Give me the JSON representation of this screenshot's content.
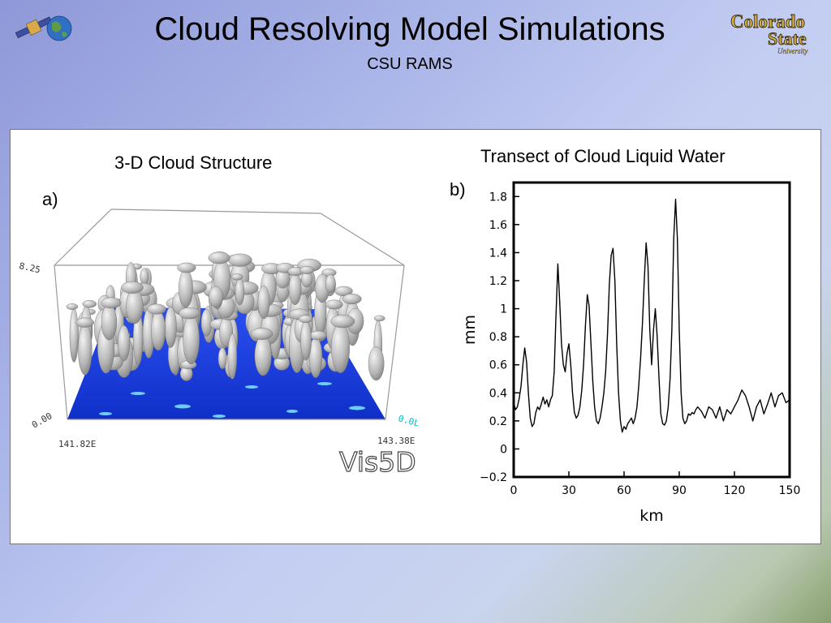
{
  "header": {
    "title": "Cloud Resolving Model Simulations",
    "subtitle": "CSU RAMS",
    "logo_left": "satellite-globe-logo",
    "logo_right_line1": "Colorado",
    "logo_right_line2": "State",
    "logo_right_line3": "University"
  },
  "panel_a": {
    "title": "3-D Cloud Structure",
    "label": "a)",
    "top_value": "8.25",
    "bottom_value": "0.00",
    "left_lon": "141.82E",
    "right_lon": "143.38E",
    "right_value": "0.0L",
    "software": "Vis5D",
    "ground_color": "#1a3cdc",
    "cloud_color": "#b8b8b8"
  },
  "panel_b": {
    "title": "Transect of Cloud Liquid Water",
    "label": "b)"
  },
  "chart_data": {
    "type": "line",
    "title": "Transect of Cloud Liquid Water",
    "xlabel": "km",
    "ylabel": "mm",
    "xlim": [
      0,
      150
    ],
    "ylim": [
      -0.2,
      1.9
    ],
    "xticks": [
      "0",
      "30",
      "60",
      "90",
      "120",
      "150"
    ],
    "yticks": [
      "-0.2",
      "0",
      "0.2",
      "0.4",
      "0.6",
      "0.8",
      "1",
      "1.2",
      "1.4",
      "1.6",
      "1.8"
    ],
    "grid": false,
    "series": [
      {
        "x": [
          0,
          1,
          2,
          3,
          4,
          5,
          6,
          7,
          8,
          9,
          10,
          11,
          12,
          13,
          14,
          15,
          16,
          17,
          18,
          19,
          20,
          21,
          22,
          23,
          24,
          25,
          26,
          27,
          28,
          29,
          30,
          31,
          32,
          33,
          34,
          35,
          36,
          37,
          38,
          39,
          40,
          41,
          42,
          43,
          44,
          45,
          46,
          47,
          48,
          49,
          50,
          51,
          52,
          53,
          54,
          55,
          56,
          57,
          58,
          59,
          60,
          61,
          62,
          63,
          64,
          65,
          66,
          67,
          68,
          69,
          70,
          71,
          72,
          73,
          74,
          75,
          76,
          77,
          78,
          79,
          80,
          81,
          82,
          83,
          84,
          85,
          86,
          87,
          88,
          89,
          90,
          91,
          92,
          93,
          94,
          95,
          96,
          97,
          98,
          99,
          100,
          102,
          104,
          106,
          108,
          110,
          112,
          114,
          116,
          118,
          120,
          122,
          124,
          126,
          128,
          130,
          132,
          134,
          136,
          138,
          140,
          142,
          144,
          146,
          148,
          150
        ],
        "y": [
          0.33,
          0.28,
          0.3,
          0.36,
          0.45,
          0.6,
          0.72,
          0.62,
          0.4,
          0.22,
          0.16,
          0.18,
          0.26,
          0.3,
          0.28,
          0.32,
          0.37,
          0.32,
          0.35,
          0.3,
          0.35,
          0.38,
          0.55,
          0.95,
          1.32,
          1.05,
          0.75,
          0.6,
          0.55,
          0.68,
          0.75,
          0.6,
          0.4,
          0.26,
          0.22,
          0.24,
          0.3,
          0.42,
          0.6,
          0.88,
          1.1,
          1.02,
          0.75,
          0.48,
          0.3,
          0.2,
          0.18,
          0.22,
          0.3,
          0.4,
          0.55,
          0.82,
          1.18,
          1.38,
          1.43,
          1.2,
          0.75,
          0.4,
          0.2,
          0.12,
          0.16,
          0.14,
          0.18,
          0.2,
          0.22,
          0.18,
          0.22,
          0.3,
          0.45,
          0.65,
          0.9,
          1.2,
          1.47,
          1.3,
          0.85,
          0.6,
          0.85,
          1.0,
          0.8,
          0.5,
          0.25,
          0.18,
          0.17,
          0.2,
          0.3,
          0.5,
          0.85,
          1.5,
          1.78,
          1.5,
          0.85,
          0.4,
          0.22,
          0.18,
          0.2,
          0.25,
          0.24,
          0.26,
          0.25,
          0.28,
          0.3,
          0.27,
          0.22,
          0.3,
          0.28,
          0.22,
          0.3,
          0.2,
          0.28,
          0.25,
          0.3,
          0.35,
          0.42,
          0.38,
          0.3,
          0.2,
          0.3,
          0.35,
          0.25,
          0.32,
          0.4,
          0.3,
          0.38,
          0.4,
          0.33,
          0.35
        ]
      }
    ]
  }
}
